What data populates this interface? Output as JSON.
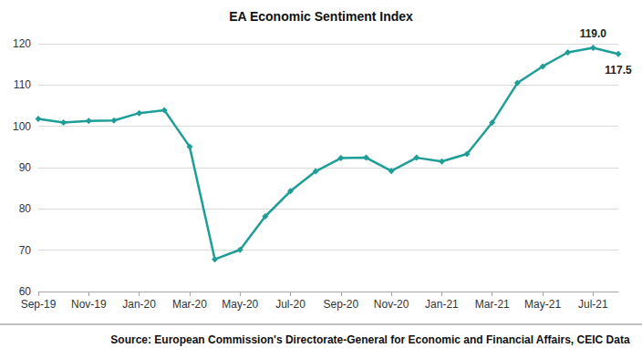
{
  "chart_data": {
    "type": "line",
    "title": "EA Economic Sentiment Index",
    "source": "Source: European Commission's Directorate-General for Economic and Financial Affairs, CEIC Data",
    "categories": [
      "Sep-19",
      null,
      "Nov-19",
      null,
      "Jan-20",
      null,
      "Mar-20",
      null,
      "May-20",
      null,
      "Jul-20",
      null,
      "Sep-20",
      null,
      "Nov-20",
      null,
      "Jan-21",
      null,
      "Mar-21",
      null,
      "May-21",
      null,
      "Jul-21",
      null
    ],
    "values": [
      101.8,
      100.9,
      101.3,
      101.4,
      103.2,
      103.9,
      95.1,
      67.8,
      70.1,
      78.2,
      84.3,
      89.1,
      92.3,
      92.4,
      89.2,
      92.4,
      91.5,
      93.3,
      100.9,
      110.5,
      114.5,
      117.9,
      119.0,
      117.5
    ],
    "value_labels": [
      null,
      null,
      null,
      null,
      null,
      null,
      null,
      null,
      null,
      null,
      null,
      null,
      null,
      null,
      null,
      null,
      null,
      null,
      null,
      null,
      null,
      null,
      "119.0",
      "117.5"
    ],
    "color": "#1f9e98",
    "marker": "diamond",
    "ylim": [
      60,
      120
    ],
    "yticks": [
      60,
      70,
      80,
      90,
      100,
      110,
      120
    ],
    "grid": true
  }
}
